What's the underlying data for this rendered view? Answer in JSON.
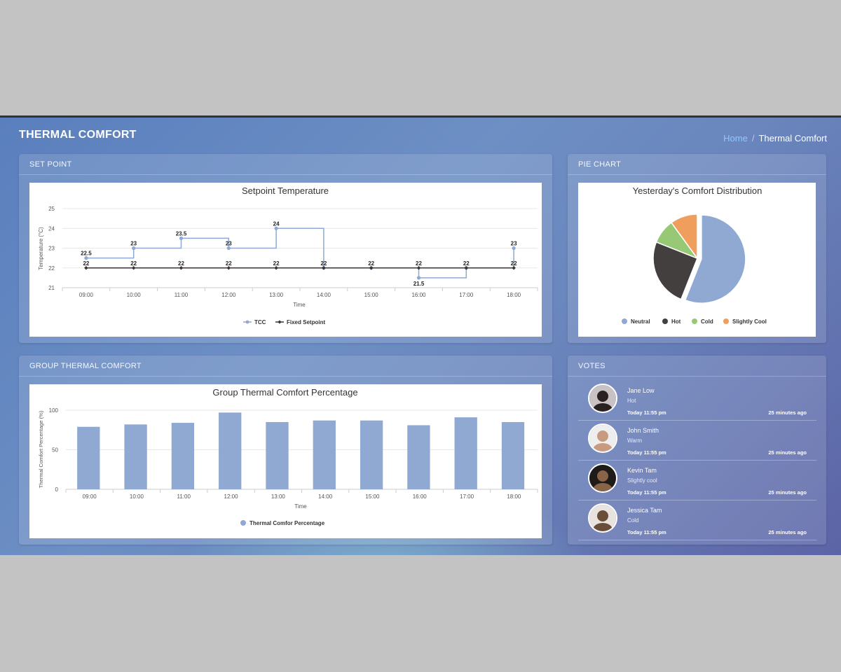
{
  "header": {
    "title": "THERMAL COMFORT"
  },
  "breadcrumb": {
    "home": "Home",
    "current": "Thermal Comfort"
  },
  "setpoint_card": {
    "heading": "SET POINT",
    "chart_data": {
      "type": "line",
      "title": "Setpoint Temperature",
      "xlabel": "Time",
      "ylabel": "Temperature (°C)",
      "x": [
        "09:00",
        "10:00",
        "11:00",
        "12:00",
        "13:00",
        "14:00",
        "15:00",
        "16:00",
        "17:00",
        "18:00"
      ],
      "yticks": [
        21,
        22,
        23,
        24,
        25
      ],
      "ylim": [
        21,
        25
      ],
      "step": true,
      "series": [
        {
          "name": "TCC",
          "color": "#8fa9d2",
          "values": [
            22.5,
            23,
            23.5,
            23,
            24,
            22,
            22,
            21.5,
            22,
            23
          ],
          "labels": [
            "22.5",
            "23",
            "23.5",
            "23",
            "24",
            "",
            "",
            "21.5",
            "",
            "23"
          ]
        },
        {
          "name": "Fixed Setpoint",
          "color": "#3a3434",
          "values": [
            22,
            22,
            22,
            22,
            22,
            22,
            22,
            22,
            22,
            22
          ],
          "labels": [
            "22",
            "22",
            "22",
            "22",
            "22",
            "22",
            "22",
            "22",
            "22",
            "22"
          ]
        }
      ]
    }
  },
  "pie_card": {
    "heading": "PIE CHART",
    "chart_data": {
      "type": "pie",
      "title": "Yesterday's Comfort Distribution",
      "slices": [
        {
          "name": "Neutral",
          "value": 56,
          "color": "#8fa9d2"
        },
        {
          "name": "Hot",
          "value": 25,
          "color": "#443f3f"
        },
        {
          "name": "Cold",
          "value": 9,
          "color": "#96c875"
        },
        {
          "name": "Slightly Cool",
          "value": 10,
          "color": "#f09e5e"
        }
      ]
    }
  },
  "group_card": {
    "heading": "GROUP THERMAL COMFORT",
    "chart_data": {
      "type": "bar",
      "title": "Group Thermal Comfort Percentage",
      "xlabel": "Time",
      "ylabel": "Thermal Comfort Percentage (%)",
      "categories": [
        "09:00",
        "10:00",
        "11:00",
        "12:00",
        "13:00",
        "14:00",
        "15:00",
        "16:00",
        "17:00",
        "18:00"
      ],
      "yticks": [
        0,
        50,
        100
      ],
      "ylim": [
        0,
        100
      ],
      "series": [
        {
          "name": "Thermal Comfor Percentage",
          "color": "#8fa9d2",
          "values": [
            79,
            82,
            84,
            97,
            85,
            87,
            87,
            81,
            91,
            85
          ]
        }
      ]
    }
  },
  "votes_card": {
    "heading": "VOTES",
    "items": [
      {
        "name": "Jane Low",
        "status": "Hot",
        "time": "Today 11:55 pm",
        "ago": "25 minutes ago",
        "avatar_bg": "#c8c2c4",
        "avatar_fg": "#2a2222"
      },
      {
        "name": "John Smith",
        "status": "Warm",
        "time": "Today 11:55 pm",
        "ago": "25 minutes ago",
        "avatar_bg": "#eeeeee",
        "avatar_fg": "#c89a80"
      },
      {
        "name": "Kevin Tam",
        "status": "Slightly cool",
        "time": "Today 11:55 pm",
        "ago": "25 minutes ago",
        "avatar_bg": "#1f1b18",
        "avatar_fg": "#8a6448"
      },
      {
        "name": "Jessica Tam",
        "status": "Cold",
        "time": "Today 11:55 pm",
        "ago": "25 minutes ago",
        "avatar_bg": "#e8e3de",
        "avatar_fg": "#6b4e3a"
      }
    ]
  }
}
